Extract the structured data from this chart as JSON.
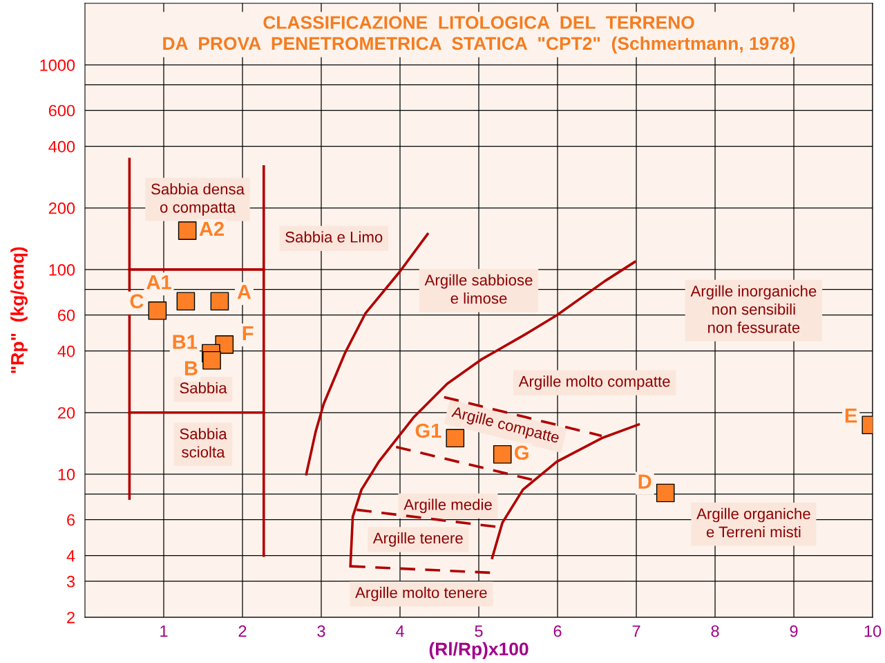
{
  "chart_data": {
    "type": "scatter",
    "title": "CLASSIFICAZIONE  LITOLOGICA  DEL  TERRENO\nDA  PROVA  PENETROMETRICA  STATICA  \"CPT2\"  (Schmertmann, 1978)",
    "xlabel": "(Rl/Rp)x100",
    "ylabel": "\"Rp\"  (kg/cmq)",
    "log": "y",
    "grid": true,
    "xlim": [
      0,
      10
    ],
    "xticks": [
      1,
      2,
      3,
      4,
      5,
      6,
      7,
      8,
      9,
      10
    ],
    "ylim": [
      2,
      2000
    ],
    "yticks": [
      2,
      3,
      4,
      6,
      {
        "value": 8,
        "label": null
      },
      10,
      20,
      40,
      60,
      {
        "value": 80,
        "label": null
      },
      100,
      200,
      400,
      600,
      {
        "value": 800,
        "label": null
      },
      1000
    ],
    "series": [
      {
        "name": "A2",
        "marker": "square",
        "color": "#ff7f27",
        "x": [
          1.3
        ],
        "values": [
          155
        ]
      },
      {
        "name": "A1",
        "marker": "square",
        "color": "#ff7f27",
        "x": [
          1.28
        ],
        "values": [
          70
        ]
      },
      {
        "name": "A",
        "marker": "square",
        "color": "#ff7f27",
        "x": [
          1.71
        ],
        "values": [
          70
        ]
      },
      {
        "name": "C",
        "marker": "square",
        "color": "#ff7f27",
        "x": [
          0.92
        ],
        "values": [
          63
        ]
      },
      {
        "name": "F",
        "marker": "square",
        "color": "#ff7f27",
        "x": [
          1.77
        ],
        "values": [
          43
        ]
      },
      {
        "name": "B1",
        "marker": "square",
        "color": "#ff7f27",
        "x": [
          1.6
        ],
        "values": [
          39
        ]
      },
      {
        "name": "B",
        "marker": "square",
        "color": "#ff7f27",
        "x": [
          1.61
        ],
        "values": [
          36
        ]
      },
      {
        "name": "G1",
        "marker": "square",
        "color": "#ff7f27",
        "x": [
          4.7
        ],
        "values": [
          15
        ]
      },
      {
        "name": "G",
        "marker": "square",
        "color": "#ff7f27",
        "x": [
          5.3
        ],
        "values": [
          12.5
        ]
      },
      {
        "name": "D",
        "marker": "square",
        "color": "#ff7f27",
        "x": [
          7.37
        ],
        "values": [
          8.1
        ]
      },
      {
        "name": "E",
        "marker": "square",
        "color": "#ff7f27",
        "x": [
          9.98
        ],
        "values": [
          17.4
        ]
      },
      {
        "type": "line",
        "color": "#b00000",
        "line_style": "solid",
        "marker": "none",
        "x": [
          0.565,
          0.565
        ],
        "values": [
          347,
          7.6
        ]
      },
      {
        "type": "line",
        "color": "#b00000",
        "line_style": "solid",
        "marker": "none",
        "x": [
          2.27,
          2.27
        ],
        "values": [
          319,
          4.0
        ]
      },
      {
        "type": "line",
        "color": "#b00000",
        "line_style": "solid",
        "marker": "none",
        "x": [
          0.565,
          2.27
        ],
        "values": [
          100,
          100
        ]
      },
      {
        "type": "line",
        "color": "#b00000",
        "line_style": "solid",
        "marker": "none",
        "x": [
          0.565,
          2.27
        ],
        "values": [
          20,
          20
        ]
      },
      {
        "type": "line",
        "color": "#b00000",
        "line_style": "solid",
        "marker": "none",
        "x": [
          2.81,
          2.93,
          3.03,
          3.3,
          3.56,
          4.0,
          4.35
        ],
        "values": [
          10,
          16.2,
          22,
          39,
          61,
          98,
          149
        ]
      },
      {
        "type": "line",
        "color": "#b00000",
        "line_style": "solid",
        "marker": "none",
        "x": [
          3.37,
          3.4,
          3.51,
          3.73,
          4.17,
          4.6,
          5.03,
          5.56,
          5.99,
          6.6,
          6.98
        ],
        "values": [
          3.55,
          6.2,
          8.4,
          11.5,
          18.9,
          27.7,
          36.3,
          47.5,
          59.8,
          87.8,
          109
        ]
      },
      {
        "type": "line",
        "color": "#b00000",
        "line_style": "solid",
        "marker": "none",
        "x": [
          5.17,
          5.3,
          5.56,
          5.99,
          6.56,
          7.03
        ],
        "values": [
          3.9,
          5.8,
          8.4,
          11.5,
          15.0,
          17.5
        ]
      },
      {
        "type": "line",
        "color": "#b00000",
        "line_style": "dashed",
        "marker": "none",
        "x": [
          4.56,
          6.56
        ],
        "values": [
          23.8,
          15.4
        ]
      },
      {
        "type": "line",
        "color": "#b00000",
        "line_style": "dashed",
        "marker": "none",
        "x": [
          3.95,
          5.73
        ],
        "values": [
          13.6,
          9.3
        ]
      },
      {
        "type": "line",
        "color": "#b00000",
        "line_style": "dashed",
        "marker": "none",
        "x": [
          3.45,
          5.28
        ],
        "values": [
          6.7,
          5.5
        ]
      },
      {
        "type": "line",
        "color": "#b00000",
        "line_style": "dashed",
        "marker": "none",
        "x": [
          3.37,
          5.15
        ],
        "values": [
          3.55,
          3.3
        ]
      }
    ],
    "annotations": [
      "Sabbia densa\no compatta",
      "Sabbia e Limo",
      "Argille sabbiose\ne limose",
      "Argille inorganiche\nnon sensibili\nnon fessurate",
      "Sabbia",
      "Sabbia\nsciolta",
      "Argille molto compatte",
      "Argille compatte",
      "Argille medie",
      "Argille tenere",
      "Argille organiche\ne Terreni misti",
      "Argille molto tenere"
    ]
  }
}
